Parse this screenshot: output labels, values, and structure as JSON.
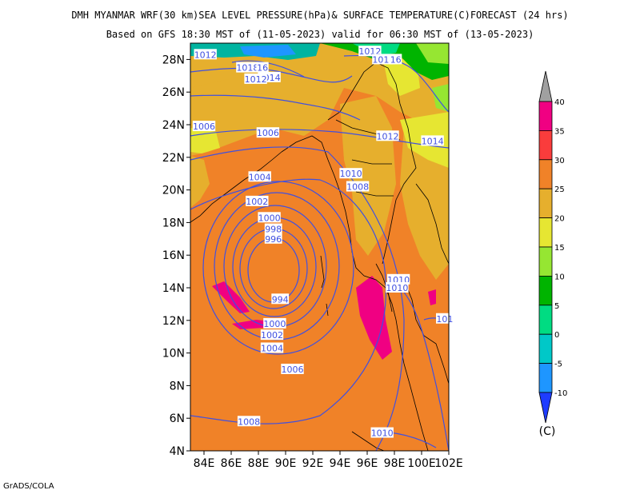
{
  "title_line1": "DMH MYANMAR WRF(30 km)SEA LEVEL PRESSURE(hPa)& SURFACE TEMPERATURE(C)FORECAST (24 hrs)",
  "title_line2": "Based on GFS 18:30 MST of (11-05-2023) valid for 06:30 MST of (13-05-2023)",
  "footer": "GrADS/COLA",
  "map": {
    "lat_range": [
      4,
      29
    ],
    "lon_range": [
      83,
      102
    ],
    "lat_ticks": [
      "4N",
      "6N",
      "8N",
      "10N",
      "12N",
      "14N",
      "16N",
      "18N",
      "20N",
      "22N",
      "24N",
      "26N",
      "28N"
    ],
    "lon_ticks": [
      "84E",
      "86E",
      "88E",
      "90E",
      "92E",
      "94E",
      "96E",
      "98E",
      "100E",
      "102E"
    ],
    "isobar_labels": [
      {
        "text": "1012",
        "lon": 84.1,
        "lat": 28.3
      },
      {
        "text": "1018",
        "lon": 87.2,
        "lat": 27.5
      },
      {
        "text": "16",
        "lon": 88.3,
        "lat": 27.5
      },
      {
        "text": "1014",
        "lon": 88.8,
        "lat": 26.9
      },
      {
        "text": "1012",
        "lon": 87.8,
        "lat": 26.8
      },
      {
        "text": "1012",
        "lon": 96.2,
        "lat": 28.5
      },
      {
        "text": "1018",
        "lon": 97.2,
        "lat": 28.0
      },
      {
        "text": "16",
        "lon": 98.1,
        "lat": 28.0
      },
      {
        "text": "1006",
        "lon": 84.0,
        "lat": 23.9
      },
      {
        "text": "1006",
        "lon": 88.7,
        "lat": 23.5
      },
      {
        "text": "1004",
        "lon": 88.1,
        "lat": 20.8
      },
      {
        "text": "1010",
        "lon": 94.8,
        "lat": 21.0
      },
      {
        "text": "1008",
        "lon": 95.3,
        "lat": 20.2
      },
      {
        "text": "1002",
        "lon": 87.9,
        "lat": 19.3
      },
      {
        "text": "1000",
        "lon": 88.8,
        "lat": 18.3
      },
      {
        "text": "998",
        "lon": 89.1,
        "lat": 17.6
      },
      {
        "text": "996",
        "lon": 89.1,
        "lat": 17.0
      },
      {
        "text": "994",
        "lon": 89.6,
        "lat": 13.3
      },
      {
        "text": "1000",
        "lon": 89.2,
        "lat": 11.8
      },
      {
        "text": "1002",
        "lon": 89.0,
        "lat": 11.1
      },
      {
        "text": "1004",
        "lon": 89.0,
        "lat": 10.3
      },
      {
        "text": "1006",
        "lon": 90.5,
        "lat": 9.0
      },
      {
        "text": "1008",
        "lon": 87.3,
        "lat": 5.8
      },
      {
        "text": "1010",
        "lon": 97.1,
        "lat": 5.1
      },
      {
        "text": "1010",
        "lon": 98.3,
        "lat": 14.5
      },
      {
        "text": "1010",
        "lon": 98.2,
        "lat": 14.0
      },
      {
        "text": "1012",
        "lon": 97.5,
        "lat": 23.3
      },
      {
        "text": "1014",
        "lon": 100.8,
        "lat": 23.0
      },
      {
        "text": "101",
        "lon": 101.7,
        "lat": 12.1
      }
    ]
  },
  "colorbar": {
    "levels": [
      "-10",
      "-5",
      "0",
      "5",
      "10",
      "15",
      "20",
      "25",
      "30",
      "35",
      "40"
    ],
    "colors": [
      "#1e3cff",
      "#1e96ff",
      "#00c8c8",
      "#00dc82",
      "#00b400",
      "#96e632",
      "#e6e632",
      "#e6af2d",
      "#f08228",
      "#fa3c3c",
      "#f00082",
      "#a0a0a0"
    ],
    "unit": "(C)"
  },
  "colors": {
    "isobar": "#4050e0",
    "warm": "#f08228",
    "mild": "#e6af2d",
    "hot": "#f00082",
    "cool": "#e6e632"
  }
}
